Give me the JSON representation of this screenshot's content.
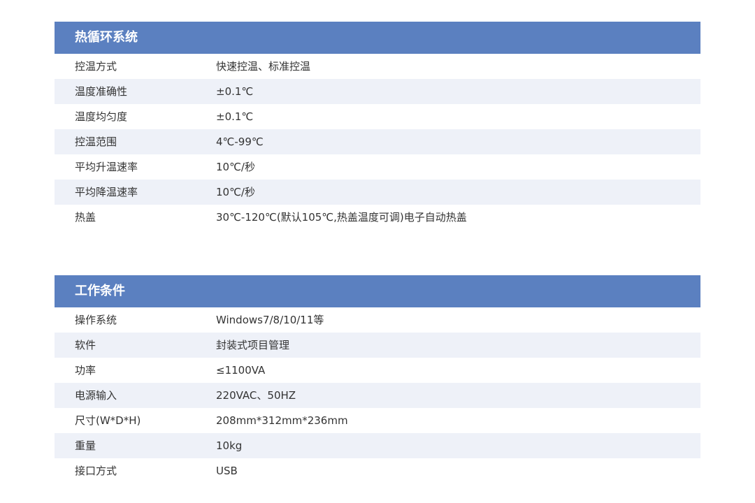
{
  "sections": [
    {
      "title": "热循环系统",
      "rows": [
        {
          "label": "控温方式",
          "value": "快速控温、标准控温"
        },
        {
          "label": "温度准确性",
          "value": "±0.1℃"
        },
        {
          "label": "温度均匀度",
          "value": "±0.1℃"
        },
        {
          "label": "控温范围",
          "value": "4℃-99℃"
        },
        {
          "label": "平均升温速率",
          "value": "10℃/秒"
        },
        {
          "label": "平均降温速率",
          "value": "10℃/秒"
        },
        {
          "label": "热盖",
          "value": "30℃-120℃(默认105℃,热盖温度可调)电子自动热盖"
        }
      ]
    },
    {
      "title": "工作条件",
      "rows": [
        {
          "label": "操作系统",
          "value": "Windows7/8/10/11等"
        },
        {
          "label": "软件",
          "value": "封装式项目管理"
        },
        {
          "label": "功率",
          "value": "≤1100VA"
        },
        {
          "label": "电源输入",
          "value": "220VAC、50HZ"
        },
        {
          "label": "尺寸(W*D*H)",
          "value": "208mm*312mm*236mm"
        },
        {
          "label": "重量",
          "value": "10kg"
        },
        {
          "label": "接口方式",
          "value": "USB"
        }
      ]
    }
  ],
  "colors": {
    "header_bg": "#5b80c0",
    "stripe_bg": "#eef1f8",
    "text": "#333333"
  }
}
